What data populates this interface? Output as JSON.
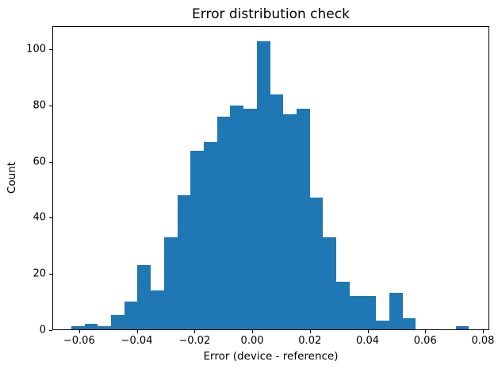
{
  "figure": {
    "background": "#ffffff",
    "text_color": "#000000"
  },
  "chart_data": {
    "type": "bar",
    "subtype": "histogram",
    "title": "Error distribution check",
    "xlabel": "Error (device - reference)",
    "ylabel": "Count",
    "bar_color": "#1f77b4",
    "bin_start": -0.063,
    "bin_width": 0.004613,
    "counts": [
      1,
      2,
      1,
      5,
      10,
      23,
      14,
      33,
      48,
      64,
      67,
      76,
      80,
      79,
      103,
      84,
      77,
      79,
      47,
      33,
      17,
      12,
      12,
      3,
      13,
      4,
      0,
      0,
      0,
      1
    ],
    "xlim": [
      -0.0693,
      0.0822
    ],
    "ylim": [
      0,
      108.15
    ],
    "xticks": [
      -0.06,
      -0.04,
      -0.02,
      0.0,
      0.02,
      0.04,
      0.06,
      0.08
    ],
    "xtick_labels": [
      "−0.06",
      "−0.04",
      "−0.02",
      "0.00",
      "0.02",
      "0.04",
      "0.06",
      "0.08"
    ],
    "yticks": [
      0,
      20,
      40,
      60,
      80,
      100
    ],
    "ytick_labels": [
      "0",
      "20",
      "40",
      "60",
      "80",
      "100"
    ],
    "grid": false,
    "legend": null
  }
}
